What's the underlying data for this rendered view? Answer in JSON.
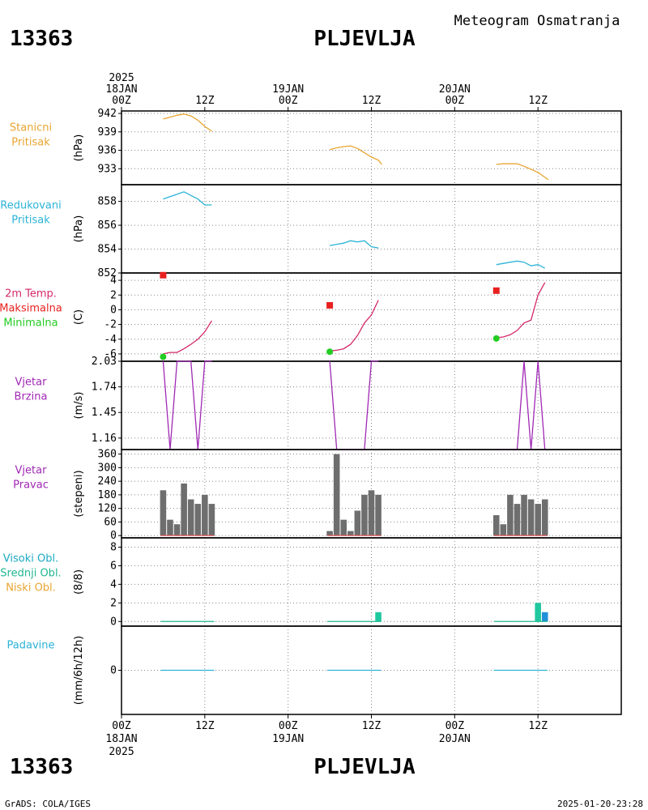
{
  "header": {
    "station_id": "13363",
    "station_name": "PLJEVLJA",
    "title": "Meteogram Osmatranja"
  },
  "footer": {
    "station_id": "13363",
    "station_name": "PLJEVLJA",
    "credit": "GrADS: COLA/IGES",
    "timestamp": "2025-01-20-23:28"
  },
  "time_axis": {
    "top": [
      {
        "hour": 0,
        "lines": [
          "2025",
          "18JAN",
          "00Z"
        ]
      },
      {
        "hour": 12,
        "lines": [
          "12Z"
        ]
      },
      {
        "hour": 24,
        "lines": [
          "19JAN",
          "00Z"
        ]
      },
      {
        "hour": 36,
        "lines": [
          "12Z"
        ]
      },
      {
        "hour": 48,
        "lines": [
          "20JAN",
          "00Z"
        ]
      },
      {
        "hour": 60,
        "lines": [
          "12Z"
        ]
      }
    ],
    "bottom": [
      {
        "hour": 0,
        "lines": [
          "00Z",
          "18JAN",
          "2025"
        ]
      },
      {
        "hour": 12,
        "lines": [
          "12Z"
        ]
      },
      {
        "hour": 24,
        "lines": [
          "00Z",
          "19JAN"
        ]
      },
      {
        "hour": 36,
        "lines": [
          "12Z"
        ]
      },
      {
        "hour": 48,
        "lines": [
          "00Z",
          "20JAN"
        ]
      },
      {
        "hour": 60,
        "lines": [
          "12Z"
        ]
      }
    ]
  },
  "chart_data": [
    {
      "type": "line",
      "name": "station-pressure",
      "labels": [
        {
          "text": "Stanicni",
          "color": "#e8a531"
        },
        {
          "text": "Pritisak",
          "color": "#e8a531"
        }
      ],
      "ylabel": "(hPa)",
      "ylim": [
        930.4,
        942.4
      ],
      "yticks": [
        942,
        939,
        936,
        933
      ],
      "series": [
        {
          "color": "#e8a531",
          "segments": [
            [
              [
                6,
                941.1
              ],
              [
                7,
                941.4
              ],
              [
                8,
                941.7
              ],
              [
                9,
                941.9
              ],
              [
                10,
                941.6
              ],
              [
                11,
                940.9
              ],
              [
                12,
                939.9
              ],
              [
                13,
                939.1
              ]
            ],
            [
              [
                30,
                936.1
              ],
              [
                31,
                936.4
              ],
              [
                32,
                936.6
              ],
              [
                33,
                936.7
              ],
              [
                34,
                936.3
              ],
              [
                35,
                935.6
              ],
              [
                36,
                934.9
              ],
              [
                37,
                934.4
              ],
              [
                37.5,
                933.7
              ]
            ],
            [
              [
                54,
                933.7
              ],
              [
                55,
                933.8
              ],
              [
                56,
                933.8
              ],
              [
                57,
                933.8
              ],
              [
                58,
                933.4
              ],
              [
                59,
                932.9
              ],
              [
                60,
                932.4
              ],
              [
                61,
                931.6
              ],
              [
                61.5,
                931.2
              ]
            ]
          ]
        }
      ]
    },
    {
      "type": "line",
      "name": "reduced-pressure",
      "labels": [
        {
          "text": "Redukovani",
          "color": "#2bb3d6"
        },
        {
          "text": "Pritisak",
          "color": "#2bb3d6"
        }
      ],
      "ylabel": "(hPa)",
      "ylim": [
        852,
        859.4
      ],
      "yticks": [
        858,
        856,
        854,
        852
      ],
      "series": [
        {
          "color": "#2bb3d6",
          "segments": [
            [
              [
                6,
                858.2
              ],
              [
                7,
                858.4
              ],
              [
                8,
                858.6
              ],
              [
                9,
                858.8
              ],
              [
                10,
                858.5
              ],
              [
                11,
                858.2
              ],
              [
                12,
                857.7
              ],
              [
                13,
                857.7
              ]
            ],
            [
              [
                30,
                854.3
              ],
              [
                31,
                854.4
              ],
              [
                32,
                854.5
              ],
              [
                33,
                854.7
              ],
              [
                34,
                854.6
              ],
              [
                35,
                854.7
              ],
              [
                36,
                854.2
              ],
              [
                37,
                854.1
              ]
            ],
            [
              [
                54,
                852.7
              ],
              [
                55,
                852.8
              ],
              [
                56,
                852.9
              ],
              [
                57,
                853.0
              ],
              [
                58,
                852.9
              ],
              [
                59,
                852.6
              ],
              [
                60,
                852.7
              ],
              [
                61,
                852.4
              ]
            ]
          ]
        }
      ]
    },
    {
      "type": "line",
      "name": "temperature",
      "labels": [
        {
          "text": "2m Temp.",
          "color": "#d42a6a"
        },
        {
          "text": "Maksimalna",
          "color": "#e8201f"
        },
        {
          "text": "Minimalna",
          "color": "#22cc22"
        }
      ],
      "ylabel": "(C)",
      "ylim": [
        -7,
        5
      ],
      "yticks": [
        4,
        2,
        0,
        -2,
        -4,
        -6
      ],
      "series": [
        {
          "color": "#d42a6a",
          "segments": [
            [
              [
                6,
                -6.0
              ],
              [
                7,
                -5.8
              ],
              [
                8,
                -5.8
              ],
              [
                9,
                -5.3
              ],
              [
                10,
                -4.7
              ],
              [
                11,
                -4.0
              ],
              [
                12,
                -3.0
              ],
              [
                13,
                -1.5
              ]
            ],
            [
              [
                30,
                -5.6
              ],
              [
                31,
                -5.5
              ],
              [
                32,
                -5.3
              ],
              [
                33,
                -4.7
              ],
              [
                34,
                -3.5
              ],
              [
                35,
                -1.8
              ],
              [
                36,
                -0.7
              ],
              [
                37,
                1.3
              ]
            ],
            [
              [
                54,
                -3.8
              ],
              [
                55,
                -3.7
              ],
              [
                56,
                -3.4
              ],
              [
                57,
                -2.8
              ],
              [
                58,
                -1.8
              ],
              [
                59,
                -1.4
              ],
              [
                60,
                2.0
              ],
              [
                61,
                3.7
              ]
            ]
          ]
        }
      ],
      "maxima": [
        {
          "x": 6,
          "y": 4.7
        },
        {
          "x": 30,
          "y": 0.6
        },
        {
          "x": 54,
          "y": 2.6
        }
      ],
      "minima": [
        {
          "x": 6,
          "y": -6.4
        },
        {
          "x": 30,
          "y": -5.7
        },
        {
          "x": 54,
          "y": -3.9
        }
      ]
    },
    {
      "type": "line",
      "name": "wind-speed",
      "labels": [
        {
          "text": "Vjetar",
          "color": "#a028b5"
        },
        {
          "text": "Brzina",
          "color": "#a028b5"
        }
      ],
      "ylabel": "(m/s)",
      "ylim": [
        1.03,
        2.03
      ],
      "yticks": [
        2.03,
        1.74,
        1.45,
        1.16
      ],
      "series": [
        {
          "color": "#a028b5",
          "segments": [
            [
              [
                6,
                2.03
              ],
              [
                7,
                1.03
              ],
              [
                8,
                2.03
              ],
              [
                9,
                2.03
              ],
              [
                10,
                2.03
              ],
              [
                11,
                1.03
              ],
              [
                12,
                2.03
              ],
              [
                13,
                2.03
              ]
            ],
            [
              [
                30,
                2.03
              ],
              [
                31,
                1.03
              ],
              [
                32,
                1.03
              ],
              [
                33,
                1.03
              ],
              [
                34,
                1.03
              ],
              [
                35,
                1.03
              ],
              [
                36,
                2.03
              ],
              [
                37,
                2.03
              ]
            ],
            [
              [
                54,
                1.03
              ],
              [
                55,
                1.03
              ],
              [
                56,
                1.03
              ],
              [
                57,
                1.03
              ],
              [
                58,
                2.03
              ],
              [
                59,
                1.03
              ],
              [
                60,
                2.03
              ],
              [
                61,
                1.03
              ]
            ]
          ]
        }
      ]
    },
    {
      "type": "bar",
      "name": "wind-direction",
      "labels": [
        {
          "text": "Vjetar",
          "color": "#a028b5"
        },
        {
          "text": "Pravac",
          "color": "#a028b5"
        }
      ],
      "ylabel": "(stepeni)",
      "ylim": [
        -10,
        380
      ],
      "yticks": [
        360,
        300,
        240,
        180,
        120,
        60,
        0
      ],
      "bar_color": "#6e6e6e",
      "baseline_color": "#e85050",
      "bars": [
        {
          "x": 6,
          "v": 200
        },
        {
          "x": 7,
          "v": 70
        },
        {
          "x": 8,
          "v": 50
        },
        {
          "x": 9,
          "v": 230
        },
        {
          "x": 10,
          "v": 160
        },
        {
          "x": 11,
          "v": 140
        },
        {
          "x": 12,
          "v": 180
        },
        {
          "x": 13,
          "v": 140
        },
        {
          "x": 30,
          "v": 20
        },
        {
          "x": 31,
          "v": 360
        },
        {
          "x": 32,
          "v": 70
        },
        {
          "x": 33,
          "v": 20
        },
        {
          "x": 34,
          "v": 110
        },
        {
          "x": 35,
          "v": 180
        },
        {
          "x": 36,
          "v": 200
        },
        {
          "x": 37,
          "v": 180
        },
        {
          "x": 54,
          "v": 90
        },
        {
          "x": 55,
          "v": 50
        },
        {
          "x": 56,
          "v": 180
        },
        {
          "x": 57,
          "v": 140
        },
        {
          "x": 58,
          "v": 180
        },
        {
          "x": 59,
          "v": 160
        },
        {
          "x": 60,
          "v": 140
        },
        {
          "x": 61,
          "v": 160
        }
      ]
    },
    {
      "type": "bar",
      "name": "cloud-cover",
      "labels": [
        {
          "text": "Visoki Obl.",
          "color": "#1aa9c2"
        },
        {
          "text": "Srednji Obl.",
          "color": "#20b890"
        },
        {
          "text": "Niski Obl.",
          "color": "#e8a531"
        }
      ],
      "ylabel": "(8/8)",
      "ylim": [
        -0.5,
        9
      ],
      "yticks": [
        8,
        6,
        4,
        2,
        0
      ],
      "bars": [
        {
          "x": 37,
          "v": 1,
          "color": "#20c8a0"
        },
        {
          "x": 60,
          "v": 2,
          "color": "#20c8a0"
        },
        {
          "x": 61,
          "v": 1,
          "color": "#2090d8"
        }
      ],
      "baseline_color": "#20b890"
    },
    {
      "type": "line",
      "name": "precipitation",
      "labels": [
        {
          "text": "Padavine",
          "color": "#2bb3d6"
        }
      ],
      "ylabel": "(mm/6h/12h)",
      "ylim": [
        -1,
        1
      ],
      "yticks": [
        0
      ],
      "baseline_color": "#2bb3d6"
    }
  ]
}
